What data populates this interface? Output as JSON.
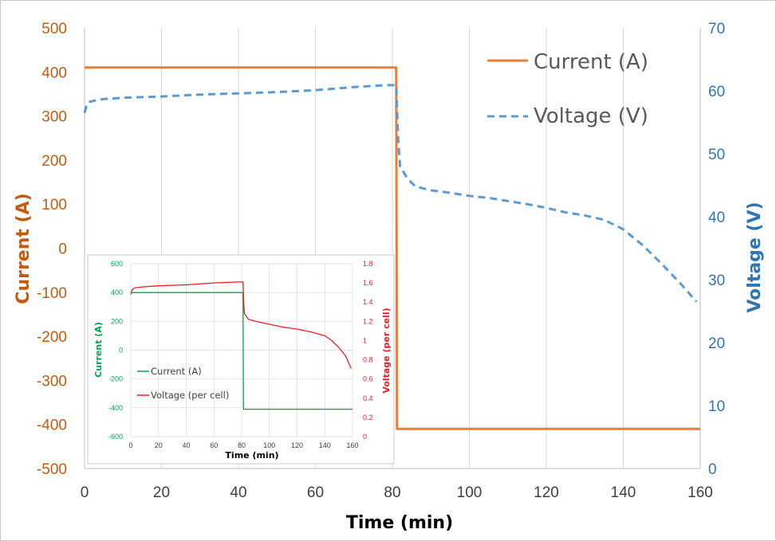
{
  "chart_data": [
    {
      "type": "line",
      "xlabel": "Time (min)",
      "ylabel_left": "Current (A)",
      "ylabel_right": "Voltage (V)",
      "xlim": [
        0,
        160
      ],
      "ylim_left": [
        -500,
        500
      ],
      "ylim_right": [
        0,
        70
      ],
      "xticks": [
        "0",
        "20",
        "40",
        "60",
        "80",
        "100",
        "120",
        "140",
        "160"
      ],
      "yticks_left": [
        "500",
        "400",
        "300",
        "200",
        "100",
        "0",
        "-100",
        "-200",
        "-300",
        "-400",
        "-500"
      ],
      "yticks_right": [
        "70",
        "60",
        "50",
        "40",
        "30",
        "20",
        "10",
        "0"
      ],
      "grid": true,
      "legend_position": "top-right",
      "colors": {
        "current": "#ed7d31",
        "voltage": "#5b9bd5",
        "left_axis": "#c55a11",
        "right_axis": "#2e75b6",
        "grid": "#d9d9d9"
      },
      "series": [
        {
          "name": "Current (A)",
          "axis": "left",
          "style": "solid",
          "x": [
            0,
            81,
            81.2,
            160
          ],
          "y": [
            410,
            410,
            -410,
            -410
          ]
        },
        {
          "name": "Voltage (V)",
          "axis": "right",
          "style": "dashed",
          "x": [
            0,
            0.5,
            1,
            3,
            5,
            10,
            20,
            30,
            40,
            50,
            60,
            70,
            78,
            81,
            81.5,
            82,
            84,
            86,
            90,
            95,
            100,
            105,
            110,
            115,
            120,
            125,
            130,
            135,
            140,
            145,
            150,
            155,
            159
          ],
          "y": [
            56.5,
            57.6,
            58.2,
            58.5,
            58.7,
            58.9,
            59.1,
            59.4,
            59.6,
            59.8,
            60.1,
            60.6,
            60.9,
            60.9,
            52.5,
            48.0,
            46.0,
            44.8,
            44.2,
            43.8,
            43.3,
            43.0,
            42.5,
            42.0,
            41.4,
            40.7,
            40.2,
            39.5,
            38.0,
            35.5,
            32.5,
            29.3,
            26.5
          ]
        }
      ]
    },
    {
      "type": "line",
      "inset": true,
      "xlabel": "Time (min)",
      "ylabel_left": "Current (A)",
      "ylabel_right": "Voltage (per cell)",
      "xlim": [
        0,
        160
      ],
      "ylim_left": [
        -600,
        600
      ],
      "ylim_right": [
        0,
        1.8
      ],
      "xticks": [
        "0",
        "20",
        "40",
        "60",
        "80",
        "100",
        "120",
        "140",
        "160"
      ],
      "yticks_left": [
        "600",
        "400",
        "200",
        "0",
        "-200",
        "-400",
        "-600"
      ],
      "yticks_right": [
        "1.8",
        "1.6",
        "1.4",
        "1.2",
        "1",
        "0.8",
        "0.6",
        "0.4",
        "0.2",
        "0"
      ],
      "grid": true,
      "legend_position": "center-left",
      "colors": {
        "current": "#00a651",
        "voltage": "#ed1c24",
        "grid": "#d9d9d9"
      },
      "series": [
        {
          "name": "Current (A)",
          "axis": "left",
          "x": [
            0,
            81,
            81.3,
            160
          ],
          "y": [
            400,
            400,
            -410,
            -410
          ]
        },
        {
          "name": "Voltage (per cell)",
          "axis": "right",
          "x": [
            0,
            1,
            3,
            10,
            20,
            40,
            60,
            78,
            81,
            81.5,
            82,
            85,
            90,
            100,
            110,
            120,
            130,
            135,
            140,
            145,
            150,
            155,
            159
          ],
          "y": [
            1.48,
            1.53,
            1.55,
            1.56,
            1.57,
            1.58,
            1.6,
            1.61,
            1.61,
            1.4,
            1.28,
            1.22,
            1.2,
            1.17,
            1.14,
            1.12,
            1.09,
            1.07,
            1.05,
            1.0,
            0.93,
            0.84,
            0.71
          ]
        }
      ]
    }
  ]
}
